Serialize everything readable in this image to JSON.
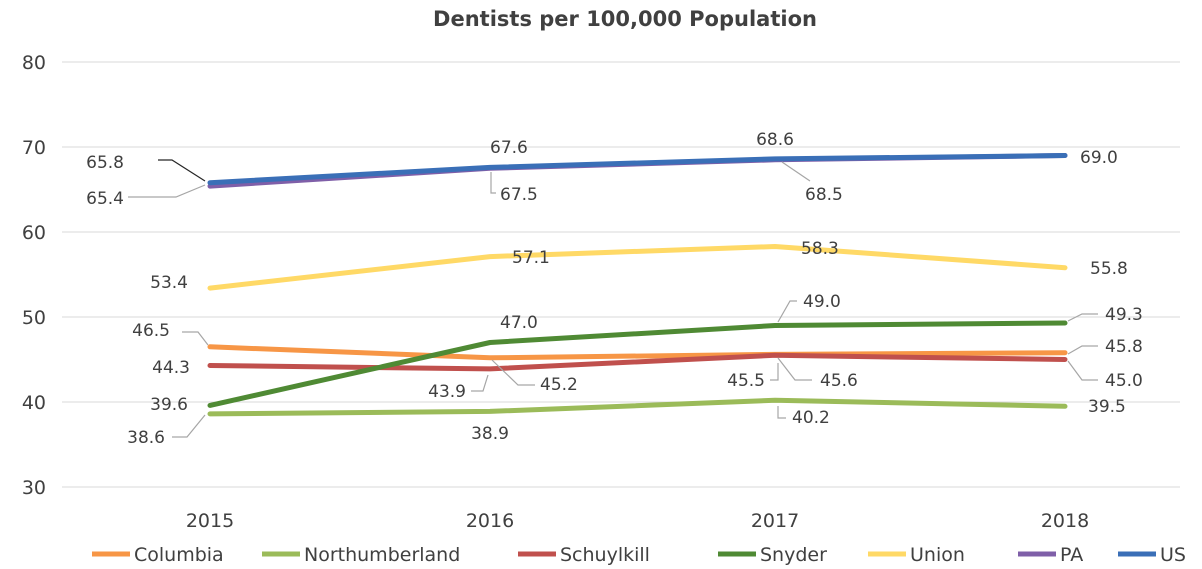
{
  "chart_data": {
    "type": "line",
    "title": "Dentists per 100,000 Population",
    "xlabel": "",
    "ylabel": "",
    "categories": [
      "2015",
      "2016",
      "2017",
      "2018"
    ],
    "ylim": [
      30,
      80
    ],
    "yticks": [
      30,
      40,
      50,
      60,
      70,
      80
    ],
    "grid": true,
    "legend_position": "bottom",
    "series": [
      {
        "name": "Columbia",
        "color": "#F79646",
        "values": [
          46.5,
          45.2,
          45.6,
          45.8
        ]
      },
      {
        "name": "Northumberland",
        "color": "#9BBB59",
        "values": [
          38.6,
          38.9,
          40.2,
          39.5
        ]
      },
      {
        "name": "Schuylkill",
        "color": "#C0504D",
        "values": [
          44.3,
          43.9,
          45.5,
          45.0
        ]
      },
      {
        "name": "Snyder",
        "color": "#4F8A34",
        "values": [
          39.6,
          47.0,
          49.0,
          49.3
        ]
      },
      {
        "name": "Union",
        "color": "#FFD966",
        "values": [
          53.4,
          57.1,
          58.3,
          55.8
        ]
      },
      {
        "name": "PA",
        "color": "#7F5FA8",
        "values": [
          65.4,
          67.5,
          68.5,
          69.0
        ]
      },
      {
        "name": "US",
        "color": "#3A6FB7",
        "values": [
          65.8,
          67.6,
          68.6,
          69.0
        ]
      }
    ],
    "data_labels": [
      {
        "series": "Columbia",
        "point": 0,
        "text": "46.5"
      },
      {
        "series": "Columbia",
        "point": 1,
        "text": "45.2"
      },
      {
        "series": "Columbia",
        "point": 2,
        "text": "45.6"
      },
      {
        "series": "Columbia",
        "point": 3,
        "text": "45.8"
      },
      {
        "series": "Northumberland",
        "point": 0,
        "text": "38.6"
      },
      {
        "series": "Northumberland",
        "point": 1,
        "text": "38.9"
      },
      {
        "series": "Northumberland",
        "point": 2,
        "text": "40.2"
      },
      {
        "series": "Northumberland",
        "point": 3,
        "text": "39.5"
      },
      {
        "series": "Schuylkill",
        "point": 0,
        "text": "44.3"
      },
      {
        "series": "Schuylkill",
        "point": 1,
        "text": "43.9"
      },
      {
        "series": "Schuylkill",
        "point": 2,
        "text": "45.5"
      },
      {
        "series": "Schuylkill",
        "point": 3,
        "text": "45.0"
      },
      {
        "series": "Snyder",
        "point": 0,
        "text": "39.6"
      },
      {
        "series": "Snyder",
        "point": 1,
        "text": "47.0"
      },
      {
        "series": "Snyder",
        "point": 2,
        "text": "49.0"
      },
      {
        "series": "Snyder",
        "point": 3,
        "text": "49.3"
      },
      {
        "series": "Union",
        "point": 0,
        "text": "53.4"
      },
      {
        "series": "Union",
        "point": 1,
        "text": "57.1"
      },
      {
        "series": "Union",
        "point": 2,
        "text": "58.3"
      },
      {
        "series": "Union",
        "point": 3,
        "text": "55.8"
      },
      {
        "series": "PA",
        "point": 0,
        "text": "65.4"
      },
      {
        "series": "PA",
        "point": 1,
        "text": "67.5"
      },
      {
        "series": "PA",
        "point": 2,
        "text": "68.5"
      },
      {
        "series": "US",
        "point": 0,
        "text": "65.8"
      },
      {
        "series": "US",
        "point": 1,
        "text": "67.6"
      },
      {
        "series": "US",
        "point": 2,
        "text": "68.6"
      },
      {
        "series": "US",
        "point": 3,
        "text": "69.0"
      }
    ]
  }
}
